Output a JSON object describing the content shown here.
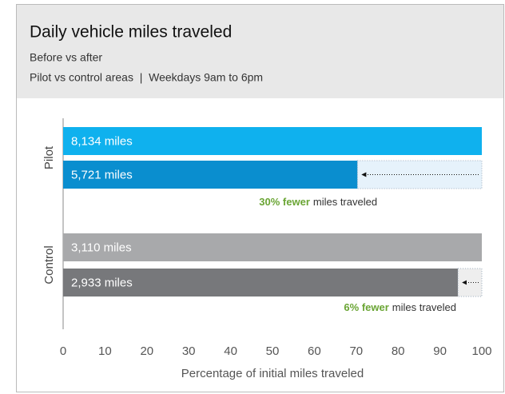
{
  "chart_data": {
    "type": "bar",
    "title": "Daily vehicle miles traveled",
    "subtitle": [
      "Before vs after",
      "Pilot vs control areas  |  Weekdays 9am to 6pm"
    ],
    "xlabel": "Percentage of initial miles traveled",
    "xlim": [
      0,
      100
    ],
    "xticks": [
      0,
      10,
      20,
      30,
      40,
      50,
      60,
      70,
      80,
      90,
      100
    ],
    "series": [
      {
        "name": "Pilot",
        "values": [
          100,
          70.3
        ],
        "value_labels": [
          "8,134 miles",
          "5,721 miles"
        ],
        "colors": [
          "#0fb1ee",
          "#0a8ecf"
        ],
        "gap_color": "#e6f2fb",
        "annotation_highlight": "30% fewer",
        "annotation_text": "miles traveled"
      },
      {
        "name": "Control",
        "values": [
          100,
          94.3
        ],
        "value_labels": [
          "3,110 miles",
          "2,933 miles"
        ],
        "colors": [
          "#a8a9ab",
          "#77787b"
        ],
        "gap_color": "#eeeeee",
        "annotation_highlight": "6% fewer",
        "annotation_text": "miles traveled"
      }
    ],
    "highlight_color": "#6aa534"
  }
}
